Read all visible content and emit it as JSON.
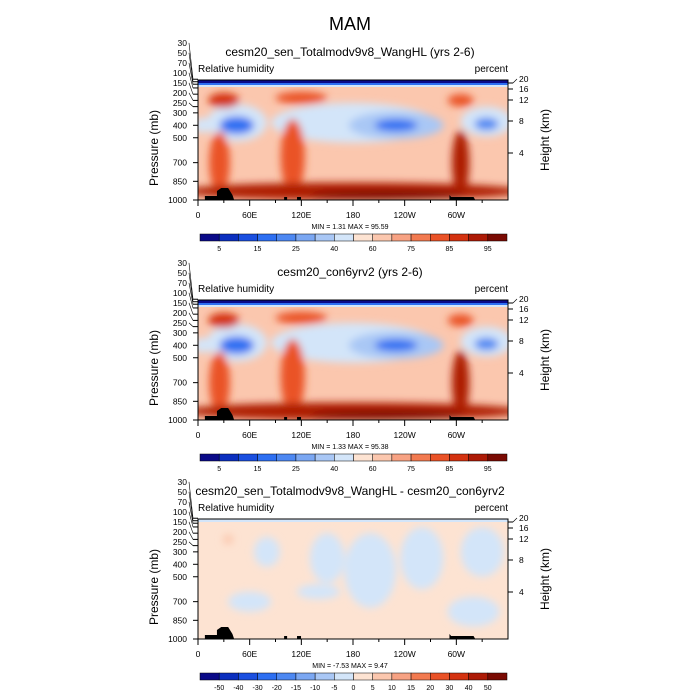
{
  "main_title": "MAM",
  "palette": [
    "#0a0a88",
    "#0b2fbf",
    "#1a4fe0",
    "#2d6ff2",
    "#4d88f2",
    "#7ba7f2",
    "#a9c7f5",
    "#d3e5f9",
    "#fde3d2",
    "#fbc7ae",
    "#f7a283",
    "#f27a50",
    "#ea5227",
    "#d43210",
    "#ad1a06",
    "#7a0a03"
  ],
  "chart_data": [
    {
      "type": "heatmap",
      "title": "cesm20_sen_Totalmodv9v8_WangHL (yrs 2-6)",
      "left_label": "Relative humidity",
      "right_label": "percent",
      "ylabel": "Pressure (mb)",
      "ylabel_right": "Height (km)",
      "stats": "MIN =   1.31  MAX =  95.59",
      "xticks": [
        {
          "lon": 0,
          "label": "0"
        },
        {
          "lon": 60,
          "label": "60E"
        },
        {
          "lon": 120,
          "label": "120E"
        },
        {
          "lon": 180,
          "label": "180"
        },
        {
          "lon": 240,
          "label": "120W"
        },
        {
          "lon": 300,
          "label": "60W"
        }
      ],
      "yticks": [
        "30",
        "50",
        "70",
        "100",
        "150",
        "200",
        "250",
        "300",
        "400",
        "500",
        "700",
        "850",
        "1000"
      ],
      "height_ticks": [
        "20",
        "16",
        "12",
        "8",
        "4"
      ],
      "levels": [
        5,
        10,
        15,
        20,
        25,
        30,
        40,
        50,
        60,
        65,
        70,
        75,
        80,
        85,
        90,
        95
      ],
      "level_labels": [
        "5",
        "15",
        "25",
        "40",
        "60",
        "75",
        "85",
        "95"
      ],
      "background_value": 62,
      "features": [
        {
          "lon": 180,
          "p": 380,
          "rl": 95,
          "rp": 160,
          "v": 45
        },
        {
          "lon": 230,
          "p": 400,
          "rl": 55,
          "rp": 110,
          "v": 30
        },
        {
          "lon": 230,
          "p": 400,
          "rl": 25,
          "rp": 50,
          "v": 15
        },
        {
          "lon": 45,
          "p": 380,
          "rl": 35,
          "rp": 150,
          "v": 40
        },
        {
          "lon": 45,
          "p": 400,
          "rl": 20,
          "rp": 70,
          "v": 18
        },
        {
          "lon": 335,
          "p": 370,
          "rl": 30,
          "rp": 120,
          "v": 40
        },
        {
          "lon": 335,
          "p": 390,
          "rl": 14,
          "rp": 50,
          "v": 20
        },
        {
          "lon": 5,
          "p": 400,
          "rl": 10,
          "rp": 60,
          "v": 45
        },
        {
          "lon": 30,
          "p": 200,
          "rl": 18,
          "rp": 60,
          "v": 80
        },
        {
          "lon": 120,
          "p": 180,
          "rl": 30,
          "rp": 50,
          "v": 78
        },
        {
          "lon": 305,
          "p": 200,
          "rl": 15,
          "rp": 50,
          "v": 78
        },
        {
          "lon": 25,
          "p": 700,
          "rl": 12,
          "rp": 250,
          "v": 78
        },
        {
          "lon": 110,
          "p": 650,
          "rl": 14,
          "rp": 300,
          "v": 75
        },
        {
          "lon": 305,
          "p": 700,
          "rl": 10,
          "rp": 260,
          "v": 85
        },
        {
          "lon": 180,
          "p": 930,
          "rl": 200,
          "rp": 70,
          "v": 85
        },
        {
          "lon": 220,
          "p": 960,
          "rl": 90,
          "rp": 35,
          "v": 92
        }
      ],
      "topography": true
    },
    {
      "type": "heatmap",
      "title": "cesm20_con6yrv2 (yrs 2-6)",
      "left_label": "Relative humidity",
      "right_label": "percent",
      "ylabel": "Pressure (mb)",
      "ylabel_right": "Height (km)",
      "stats": "MIN =   1.33  MAX =  95.38",
      "xticks": [
        {
          "lon": 0,
          "label": "0"
        },
        {
          "lon": 60,
          "label": "60E"
        },
        {
          "lon": 120,
          "label": "120E"
        },
        {
          "lon": 180,
          "label": "180"
        },
        {
          "lon": 240,
          "label": "120W"
        },
        {
          "lon": 300,
          "label": "60W"
        }
      ],
      "yticks": [
        "30",
        "50",
        "70",
        "100",
        "150",
        "200",
        "250",
        "300",
        "400",
        "500",
        "700",
        "850",
        "1000"
      ],
      "height_ticks": [
        "20",
        "16",
        "12",
        "8",
        "4"
      ],
      "levels": [
        5,
        10,
        15,
        20,
        25,
        30,
        40,
        50,
        60,
        65,
        70,
        75,
        80,
        85,
        90,
        95
      ],
      "level_labels": [
        "5",
        "15",
        "25",
        "40",
        "60",
        "75",
        "85",
        "95"
      ],
      "background_value": 62,
      "features": [
        {
          "lon": 180,
          "p": 380,
          "rl": 95,
          "rp": 160,
          "v": 45
        },
        {
          "lon": 230,
          "p": 400,
          "rl": 55,
          "rp": 110,
          "v": 30
        },
        {
          "lon": 230,
          "p": 400,
          "rl": 25,
          "rp": 50,
          "v": 15
        },
        {
          "lon": 45,
          "p": 380,
          "rl": 35,
          "rp": 150,
          "v": 40
        },
        {
          "lon": 45,
          "p": 400,
          "rl": 20,
          "rp": 70,
          "v": 18
        },
        {
          "lon": 335,
          "p": 370,
          "rl": 30,
          "rp": 120,
          "v": 40
        },
        {
          "lon": 335,
          "p": 390,
          "rl": 14,
          "rp": 50,
          "v": 20
        },
        {
          "lon": 5,
          "p": 400,
          "rl": 10,
          "rp": 60,
          "v": 45
        },
        {
          "lon": 30,
          "p": 200,
          "rl": 18,
          "rp": 60,
          "v": 80
        },
        {
          "lon": 120,
          "p": 180,
          "rl": 30,
          "rp": 50,
          "v": 78
        },
        {
          "lon": 305,
          "p": 200,
          "rl": 15,
          "rp": 50,
          "v": 78
        },
        {
          "lon": 25,
          "p": 700,
          "rl": 12,
          "rp": 250,
          "v": 78
        },
        {
          "lon": 110,
          "p": 650,
          "rl": 14,
          "rp": 300,
          "v": 75
        },
        {
          "lon": 305,
          "p": 700,
          "rl": 10,
          "rp": 260,
          "v": 85
        },
        {
          "lon": 180,
          "p": 930,
          "rl": 200,
          "rp": 70,
          "v": 85
        },
        {
          "lon": 220,
          "p": 960,
          "rl": 90,
          "rp": 35,
          "v": 92
        }
      ],
      "topography": true
    },
    {
      "type": "heatmap",
      "title": "cesm20_sen_Totalmodv9v8_WangHL - cesm20_con6yrv2",
      "left_label": "Relative humidity",
      "right_label": "percent",
      "ylabel": "Pressure (mb)",
      "ylabel_right": "Height (km)",
      "stats": "MIN =  -7.53  MAX =   9.47",
      "xticks": [
        {
          "lon": 0,
          "label": "0"
        },
        {
          "lon": 60,
          "label": "60E"
        },
        {
          "lon": 120,
          "label": "120E"
        },
        {
          "lon": 180,
          "label": "180"
        },
        {
          "lon": 240,
          "label": "120W"
        },
        {
          "lon": 300,
          "label": "60W"
        }
      ],
      "yticks": [
        "30",
        "50",
        "70",
        "100",
        "150",
        "200",
        "250",
        "300",
        "400",
        "500",
        "700",
        "850",
        "1000"
      ],
      "height_ticks": [
        "20",
        "16",
        "12",
        "8",
        "4"
      ],
      "levels": [
        -50,
        -40,
        -30,
        -20,
        -15,
        -10,
        -5,
        0,
        5,
        10,
        15,
        20,
        30,
        40,
        50,
        60
      ],
      "level_labels": [
        "-50",
        "-40",
        "-30",
        "-20",
        "-15",
        "-10",
        "-5",
        "0",
        "5",
        "10",
        "15",
        "20",
        "30",
        "40",
        "50"
      ],
      "background_value": 2,
      "features": [
        {
          "lon": 80,
          "p": 300,
          "rl": 15,
          "rp": 120,
          "v": -3
        },
        {
          "lon": 150,
          "p": 350,
          "rl": 20,
          "rp": 200,
          "v": -3
        },
        {
          "lon": 200,
          "p": 450,
          "rl": 30,
          "rp": 300,
          "v": -3
        },
        {
          "lon": 260,
          "p": 350,
          "rl": 25,
          "rp": 250,
          "v": -3
        },
        {
          "lon": 330,
          "p": 300,
          "rl": 25,
          "rp": 200,
          "v": -3
        },
        {
          "lon": 60,
          "p": 700,
          "rl": 25,
          "rp": 80,
          "v": -3
        },
        {
          "lon": 320,
          "p": 780,
          "rl": 30,
          "rp": 120,
          "v": -3
        },
        {
          "lon": 140,
          "p": 620,
          "rl": 25,
          "rp": 60,
          "v": -3
        },
        {
          "lon": 35,
          "p": 200,
          "rl": 6,
          "rp": 40,
          "v": 7
        }
      ],
      "topography": true
    }
  ]
}
